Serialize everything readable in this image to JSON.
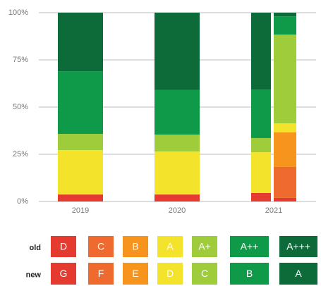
{
  "chart_data": {
    "type": "bar",
    "stacked": true,
    "categories": [
      "2019",
      "2020",
      "2021"
    ],
    "ylim": [
      0,
      100
    ],
    "yticks": [
      {
        "value": 0,
        "label": "0%"
      },
      {
        "value": 25,
        "label": "25%"
      },
      {
        "value": 50,
        "label": "50%"
      },
      {
        "value": 75,
        "label": "75%"
      },
      {
        "value": 100,
        "label": "100%"
      }
    ],
    "grid": true,
    "groups": [
      {
        "name": "old",
        "series": [
          {
            "name": "D",
            "color": "#e53a2f",
            "values": [
              3.7,
              3.7,
              4.5
            ]
          },
          {
            "name": "C",
            "color": "#ef6a2e",
            "values": [
              0,
              0,
              0
            ]
          },
          {
            "name": "B",
            "color": "#f7941d",
            "values": [
              0,
              0,
              0
            ]
          },
          {
            "name": "A",
            "color": "#f3e32b",
            "values": [
              23.5,
              22.8,
              21.6
            ]
          },
          {
            "name": "A+",
            "color": "#9fcc3b",
            "values": [
              8.6,
              8.9,
              7.5
            ]
          },
          {
            "name": "A++",
            "color": "#0e9a48",
            "values": [
              33.2,
              23.6,
              25.7
            ]
          },
          {
            "name": "A+++",
            "color": "#0d6b3a",
            "values": [
              31,
              41,
              40.7
            ]
          }
        ]
      },
      {
        "name": "new",
        "series": [
          {
            "name": "G",
            "color": "#e53a2f",
            "values": [
              null,
              null,
              1.9
            ]
          },
          {
            "name": "F",
            "color": "#ef6a2e",
            "values": [
              null,
              null,
              16.4
            ]
          },
          {
            "name": "E",
            "color": "#f7941d",
            "values": [
              null,
              null,
              18.3
            ]
          },
          {
            "name": "D",
            "color": "#f3e32b",
            "values": [
              null,
              null,
              4.8
            ]
          },
          {
            "name": "C",
            "color": "#9fcc3b",
            "values": [
              null,
              null,
              47
            ]
          },
          {
            "name": "B",
            "color": "#0e9a48",
            "values": [
              null,
              null,
              9.7
            ]
          },
          {
            "name": "A",
            "color": "#0d6b3a",
            "values": [
              null,
              null,
              1.9
            ]
          }
        ]
      }
    ]
  }
}
